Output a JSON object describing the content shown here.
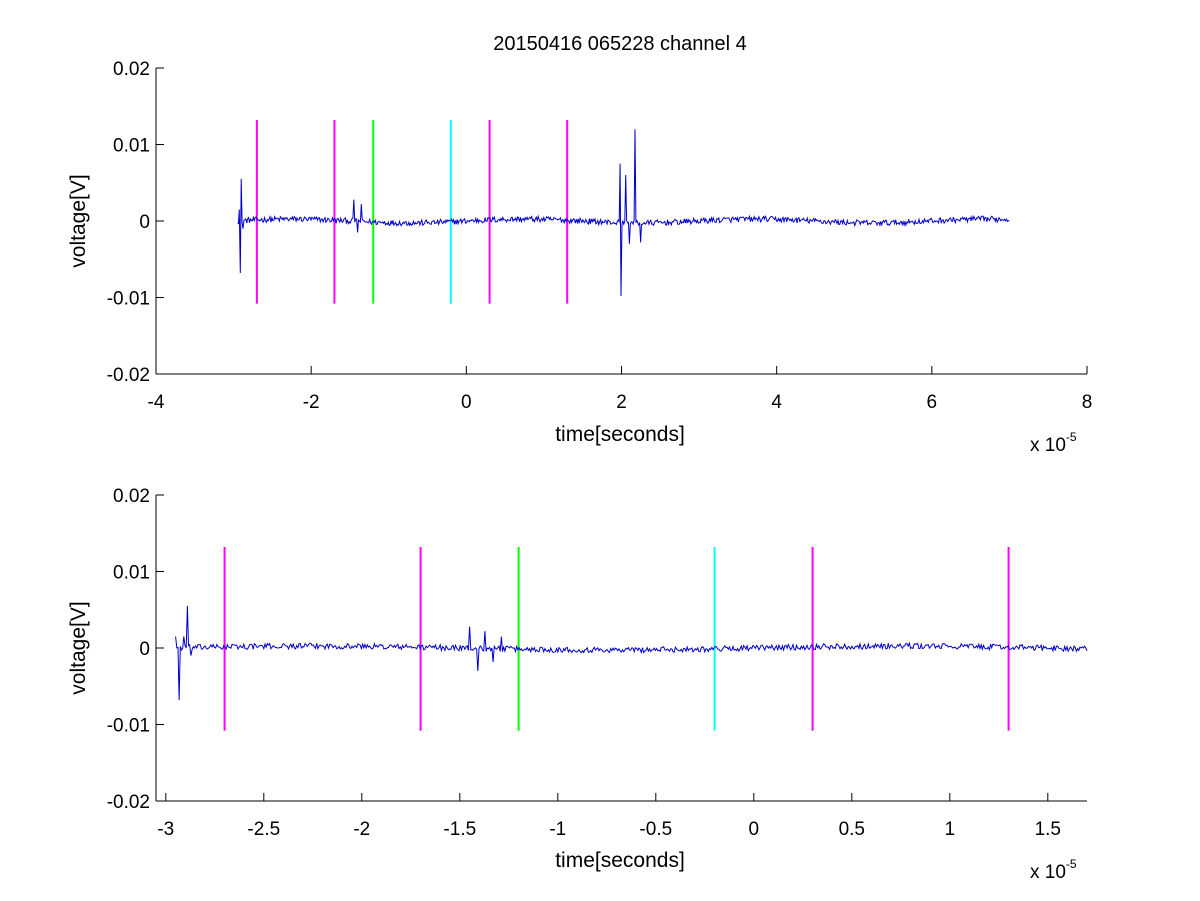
{
  "chart_data": [
    {
      "type": "line",
      "title": "20150416 065228 channel 4",
      "xlabel": "time[seconds]",
      "ylabel": "voltage[V]",
      "x_exponent_label": "x 10",
      "x_exponent_power": "-5",
      "xlim": [
        -4,
        8
      ],
      "ylim": [
        -0.02,
        0.02
      ],
      "x_ticks": [
        "-4",
        "-2",
        "0",
        "2",
        "4",
        "6",
        "8"
      ],
      "y_ticks": [
        "-0.02",
        "-0.01",
        "0",
        "0.01",
        "0.02"
      ],
      "grid": false,
      "signal": {
        "color": "#0000cc",
        "x_range": [
          -2.95,
          7.0
        ],
        "events": [
          {
            "x": -2.93,
            "y": 0.0015
          },
          {
            "x": -2.92,
            "y": -0.0068
          },
          {
            "x": -2.9,
            "y": 0.0055
          },
          {
            "x": -2.88,
            "y": -0.001
          },
          {
            "x": -1.45,
            "y": 0.0028
          },
          {
            "x": -1.4,
            "y": -0.0015
          },
          {
            "x": -1.35,
            "y": 0.0022
          },
          {
            "x": 1.98,
            "y": 0.0075
          },
          {
            "x": 2.0,
            "y": -0.0098
          },
          {
            "x": 2.05,
            "y": 0.006
          },
          {
            "x": 2.1,
            "y": -0.003
          },
          {
            "x": 2.18,
            "y": 0.012
          },
          {
            "x": 2.25,
            "y": -0.0028
          }
        ]
      },
      "markers": [
        {
          "x": -2.7,
          "color": "#ff00ff"
        },
        {
          "x": -1.7,
          "color": "#ff00ff"
        },
        {
          "x": -1.2,
          "color": "#00ff00"
        },
        {
          "x": -0.2,
          "color": "#00ffff"
        },
        {
          "x": 0.3,
          "color": "#ff00ff"
        },
        {
          "x": 1.3,
          "color": "#ff00ff"
        }
      ],
      "marker_y_range": [
        -0.0108,
        0.0132
      ]
    },
    {
      "type": "line",
      "xlabel": "time[seconds]",
      "ylabel": "voltage[V]",
      "x_exponent_label": "x 10",
      "x_exponent_power": "-5",
      "xlim": [
        -3.05,
        1.7
      ],
      "ylim": [
        -0.02,
        0.02
      ],
      "x_ticks": [
        "-3",
        "-2.5",
        "-2",
        "-1.5",
        "-1",
        "-0.5",
        "0",
        "0.5",
        "1",
        "1.5"
      ],
      "y_ticks": [
        "-0.02",
        "-0.01",
        "0",
        "0.01",
        "0.02"
      ],
      "grid": false,
      "signal": {
        "color": "#0000cc",
        "x_range": [
          -2.95,
          1.7
        ],
        "events": [
          {
            "x": -2.95,
            "y": 0.0015
          },
          {
            "x": -2.93,
            "y": -0.0068
          },
          {
            "x": -2.91,
            "y": 0.0015
          },
          {
            "x": -2.89,
            "y": 0.0055
          },
          {
            "x": -2.87,
            "y": -0.001
          },
          {
            "x": -1.45,
            "y": 0.0028
          },
          {
            "x": -1.41,
            "y": -0.003
          },
          {
            "x": -1.37,
            "y": 0.0022
          },
          {
            "x": -1.33,
            "y": -0.0018
          },
          {
            "x": -1.29,
            "y": 0.0015
          }
        ]
      },
      "markers": [
        {
          "x": -2.7,
          "color": "#ff00ff"
        },
        {
          "x": -1.7,
          "color": "#ff00ff"
        },
        {
          "x": -1.2,
          "color": "#00ff00"
        },
        {
          "x": -0.2,
          "color": "#00ffff"
        },
        {
          "x": 0.3,
          "color": "#ff00ff"
        },
        {
          "x": 1.3,
          "color": "#ff00ff"
        }
      ],
      "marker_y_range": [
        -0.0108,
        0.0132
      ]
    }
  ]
}
